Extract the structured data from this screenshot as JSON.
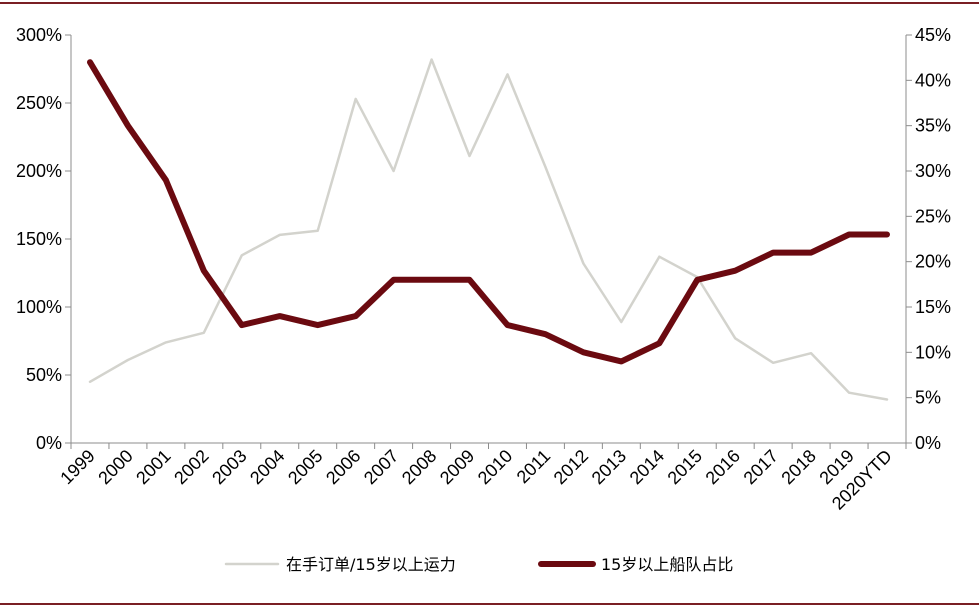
{
  "chart_data": {
    "type": "line",
    "title": "",
    "xlabel": "",
    "ylabel": "",
    "categories": [
      "1999",
      "2000",
      "2001",
      "2002",
      "2003",
      "2004",
      "2005",
      "2006",
      "2007",
      "2008",
      "2009",
      "2010",
      "2011",
      "2012",
      "2013",
      "2014",
      "2015",
      "2016",
      "2017",
      "2018",
      "2019",
      "2020YTD"
    ],
    "series": [
      {
        "name": "在手订单/15岁以上运力",
        "axis": "left",
        "color": "#d3d3cd",
        "values": [
          45,
          61,
          74,
          81,
          138,
          153,
          156,
          253,
          200,
          282,
          211,
          271,
          203,
          132,
          89,
          137,
          122,
          77,
          59,
          66,
          37,
          32
        ]
      },
      {
        "name": "15岁以上船队占比",
        "axis": "right",
        "color": "#6b0a10",
        "values": [
          42,
          35,
          29,
          19,
          13,
          14,
          13,
          14,
          18,
          18,
          18,
          13,
          12,
          10,
          9,
          11,
          18,
          19,
          21,
          21,
          23,
          23
        ]
      }
    ],
    "y_left": {
      "min": 0,
      "max": 300,
      "step": 50,
      "ticks": [
        "0%",
        "50%",
        "100%",
        "150%",
        "200%",
        "250%",
        "300%"
      ]
    },
    "y_right": {
      "min": 0,
      "max": 45,
      "step": 5,
      "ticks": [
        "0%",
        "5%",
        "10%",
        "15%",
        "20%",
        "25%",
        "30%",
        "35%",
        "40%",
        "45%"
      ]
    },
    "grid": false,
    "legend": "bottom-center"
  }
}
